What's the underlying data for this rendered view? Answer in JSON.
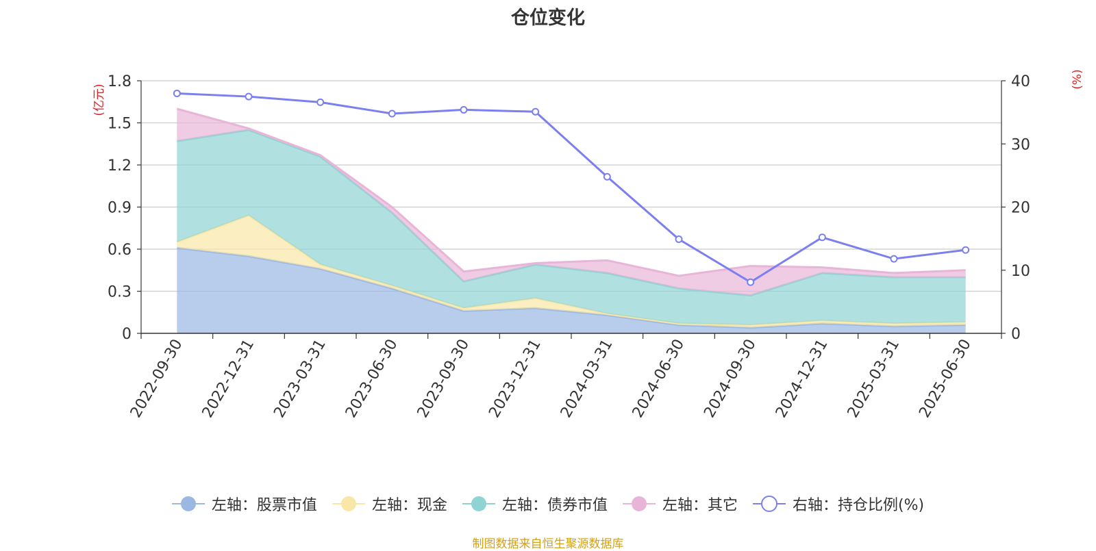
{
  "chart_data": {
    "type": "area",
    "title": "仓位变化",
    "categories": [
      "2022-09-30",
      "2022-12-31",
      "2023-03-31",
      "2023-06-30",
      "2023-09-30",
      "2023-12-31",
      "2024-03-31",
      "2024-06-30",
      "2024-09-30",
      "2024-12-31",
      "2025-03-31",
      "2025-06-30"
    ],
    "left_axis": {
      "unit": "(亿元)",
      "ylim": [
        0,
        1.8
      ],
      "ticks": [
        "0",
        "0.3",
        "0.6",
        "0.9",
        "1.2",
        "1.5",
        "1.8"
      ]
    },
    "right_axis": {
      "unit": "(%)",
      "ylim": [
        0,
        40
      ],
      "ticks": [
        "0",
        "10",
        "20",
        "30",
        "40"
      ]
    },
    "stacked": true,
    "grid": true,
    "legend_position": "bottom",
    "series": [
      {
        "name": "左轴：股票市值",
        "axis": "left",
        "type": "area",
        "color": "#9ab8e2",
        "values": [
          0.61,
          0.55,
          0.46,
          0.32,
          0.16,
          0.18,
          0.13,
          0.06,
          0.04,
          0.07,
          0.05,
          0.06
        ]
      },
      {
        "name": "左轴：现金",
        "axis": "left",
        "type": "area",
        "color": "#f9e7a7",
        "values": [
          0.04,
          0.29,
          0.03,
          0.02,
          0.02,
          0.07,
          0.01,
          0.01,
          0.02,
          0.02,
          0.02,
          0.02
        ]
      },
      {
        "name": "左轴：债券市值",
        "axis": "left",
        "type": "area",
        "color": "#8fd3d3",
        "values": [
          0.72,
          0.61,
          0.77,
          0.52,
          0.19,
          0.24,
          0.29,
          0.25,
          0.21,
          0.34,
          0.33,
          0.32
        ]
      },
      {
        "name": "左轴：其它",
        "axis": "left",
        "type": "area",
        "color": "#e8b5d9",
        "values": [
          0.23,
          0.01,
          0.01,
          0.04,
          0.07,
          0.01,
          0.09,
          0.09,
          0.21,
          0.04,
          0.03,
          0.05
        ]
      },
      {
        "name": "右轴：持仓比例(%)",
        "axis": "right",
        "type": "line",
        "color": "#7b7ff0",
        "values": [
          38.0,
          37.5,
          36.6,
          34.8,
          35.4,
          35.1,
          24.8,
          14.9,
          8.1,
          15.2,
          11.8,
          13.2
        ]
      }
    ]
  },
  "footer": {
    "source": "制图数据来自恒生聚源数据库"
  }
}
